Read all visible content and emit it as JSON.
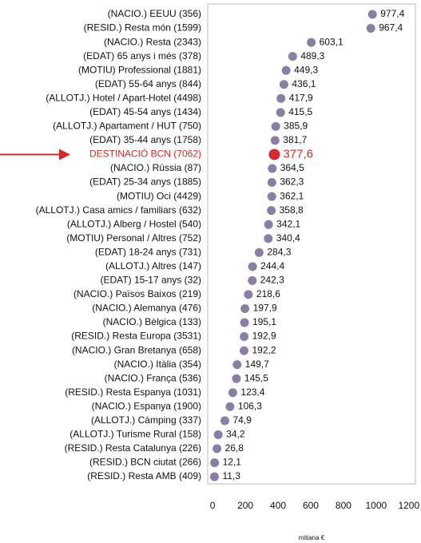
{
  "chart_data": {
    "type": "dot",
    "x_label": "mitiana €",
    "categories": [
      "(NACIO.) EEUU (356)",
      "(RESID.) Resta món (1599)",
      "(NACIO.) Resta (2343)",
      "(EDAT) 65 anys i més (378)",
      "(MOTIU) Professional (1881)",
      "(EDAT) 55-64 anys (844)",
      "(ALLOTJ.) Hotel / Apart-Hotel (4498)",
      "(EDAT) 45-54 anys (1434)",
      "(ALLOTJ.) Apartament / HUT (750)",
      "(EDAT) 35-44 anys (1758)",
      "DESTINACIÓ BCN (7062)",
      "(NACIO.) Rússia (87)",
      "(EDAT) 25-34 anys (1885)",
      "(MOTIU) Oci (4429)",
      "(ALLOTJ.) Casa amics / familiars (632)",
      "(ALLOTJ.) Alberg / Hostel (540)",
      "(MOTIU) Personal / Altres (752)",
      "(EDAT) 18-24 anys (731)",
      "(ALLOTJ.) Altres (147)",
      "(EDAT) 15-17 anys (32)",
      "(NACIO.) Països Baixos (219)",
      "(NACIO.) Alemanya (476)",
      "(NACIO.) Bèlgica (133)",
      "(RESID.) Resta Europa (3531)",
      "(NACIO.) Gran Bretanya (658)",
      "(NACIO.) Itàlia (354)",
      "(NACIO.) França (536)",
      "(RESID.) Resta Espanya (1031)",
      "(NACIO.) Espanya (1900)",
      "(ALLOTJ.) Càmping (337)",
      "(ALLOTJ.) Turisme Rural (158)",
      "(RESID.) Resta Catalunya (226)",
      "(RESID.) BCN ciutat (266)",
      "(RESID.) Resta AMB (409)"
    ],
    "values": [
      977.4,
      967.4,
      603.1,
      489.3,
      449.3,
      436.1,
      417.9,
      415.5,
      385.9,
      381.7,
      377.6,
      364.5,
      362.3,
      362.1,
      358.8,
      342.1,
      340.4,
      284.3,
      244.4,
      242.3,
      218.6,
      197.9,
      195.1,
      192.9,
      192.2,
      149.7,
      145.5,
      123.4,
      106.3,
      74.9,
      34.2,
      26.8,
      12.1,
      11.3
    ],
    "value_labels": [
      "977,4",
      "967,4",
      "603,1",
      "489,3",
      "449,3",
      "436,1",
      "417,9",
      "415,5",
      "385,9",
      "381,7",
      "377,6",
      "364,5",
      "362,3",
      "362,1",
      "358,8",
      "342,1",
      "340,4",
      "284,3",
      "244,4",
      "242,3",
      "218,6",
      "197,9",
      "195,1",
      "192,9",
      "192,2",
      "149,7",
      "145,5",
      "123,4",
      "106,3",
      "74,9",
      "34,2",
      "26,8",
      "12,1",
      "11,3"
    ],
    "color": "#8a7fa2",
    "highlight": {
      "index": 10,
      "color": "#d42a2a"
    },
    "xlim": [
      -30,
      1240
    ],
    "xticks": [
      0,
      200,
      400,
      600,
      800,
      1000,
      1200
    ]
  }
}
